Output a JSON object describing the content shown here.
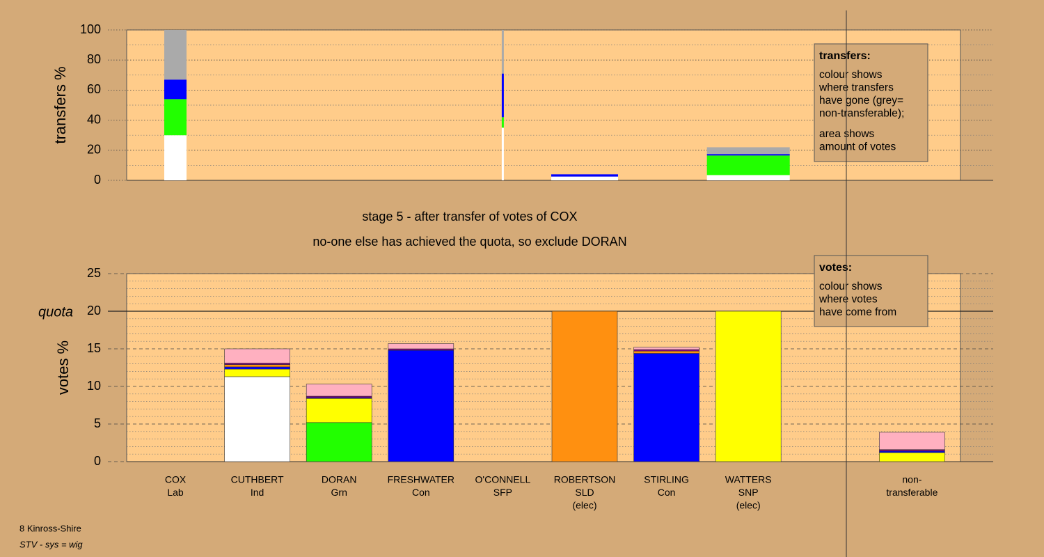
{
  "chart_data": [
    {
      "type": "bar",
      "stacked": true,
      "ylabel": "transfers %",
      "ylim": [
        0,
        100
      ],
      "yticks": [
        0,
        20,
        40,
        60,
        80,
        100
      ],
      "minor_yticks": [
        10,
        30,
        50,
        70,
        90
      ],
      "amounts": [
        3.2,
        null,
        null,
        null,
        0.3,
        9.6,
        null,
        11.9,
        null,
        null
      ],
      "series": [
        {
          "color": "#ffffff",
          "values": [
            30,
            null,
            null,
            null,
            35,
            2.5,
            null,
            3.5,
            null,
            null
          ]
        },
        {
          "color": "#22ff00",
          "values": [
            24,
            null,
            null,
            null,
            7,
            0,
            null,
            13,
            null,
            null
          ]
        },
        {
          "color": "#0000ff",
          "values": [
            13,
            null,
            null,
            null,
            29,
            1.5,
            null,
            1,
            null,
            null
          ]
        },
        {
          "color": "#aaaaaa",
          "values": [
            33,
            null,
            null,
            null,
            29,
            0,
            null,
            4.5,
            null,
            null
          ]
        }
      ],
      "legend": {
        "title": "transfers:",
        "lines": [
          [
            "colour shows",
            "where transfers",
            "have gone (grey=",
            "non-transferable);"
          ],
          [
            "area shows",
            "amount of votes"
          ]
        ]
      }
    },
    {
      "type": "bar",
      "stacked": true,
      "ylabel": "votes %",
      "ylim": [
        0,
        25
      ],
      "yticks": [
        0,
        5,
        10,
        15,
        20,
        25
      ],
      "minor_yticks": [
        1,
        2,
        3,
        4,
        6,
        7,
        8,
        9,
        11,
        12,
        13,
        14,
        16,
        17,
        18,
        19,
        21,
        22,
        23,
        24
      ],
      "quota": {
        "value": 20,
        "label": "quota"
      },
      "categories": [
        [
          "COX",
          "Lab"
        ],
        [
          "CUTHBERT",
          "Ind"
        ],
        [
          "DORAN",
          "Grn"
        ],
        [
          "FRESHWATER",
          "Con"
        ],
        [
          "O'CONNELL",
          "SFP"
        ],
        [
          "ROBERTSON",
          "SLD",
          "(elec)"
        ],
        [
          "STIRLING",
          "Con"
        ],
        [
          "WATTERS",
          "SNP",
          "(elec)"
        ],
        null,
        [
          "non-",
          "transferable"
        ]
      ],
      "series": [
        {
          "color": "#ffffff",
          "values": [
            0,
            11.3,
            0,
            0,
            0,
            0,
            0,
            0,
            null,
            0
          ]
        },
        {
          "color": "#22ff00",
          "values": [
            0,
            0,
            5.2,
            0,
            0,
            0,
            0,
            0,
            null,
            0
          ]
        },
        {
          "color": "#ffff00",
          "values": [
            0,
            1.0,
            3.2,
            0,
            0,
            0,
            0,
            20,
            null,
            1.2
          ]
        },
        {
          "color": "#0000ff",
          "values": [
            0,
            0.3,
            0.1,
            14.8,
            0,
            0,
            14.4,
            0,
            null,
            0.2
          ]
        },
        {
          "color": "#ff9010",
          "values": [
            0,
            0.3,
            0,
            0,
            0,
            20,
            0.3,
            0,
            null,
            0
          ]
        },
        {
          "color": "#800080",
          "values": [
            0,
            0.2,
            0.2,
            0.2,
            0,
            0,
            0.2,
            0,
            null,
            0.2
          ]
        },
        {
          "color": "#ffb0c0",
          "values": [
            0,
            1.9,
            1.6,
            0.7,
            0,
            0,
            0.3,
            0,
            null,
            2.3
          ]
        }
      ],
      "legend": {
        "title": "votes:",
        "lines": [
          [
            "colour shows",
            "where votes",
            "have come from"
          ]
        ]
      }
    }
  ],
  "annotations": [
    "stage 5 - after transfer of votes of COX",
    "no-one else has achieved the quota, so exclude DORAN"
  ],
  "footer": [
    "8 Kinross-Shire",
    "STV - sys = wig"
  ]
}
